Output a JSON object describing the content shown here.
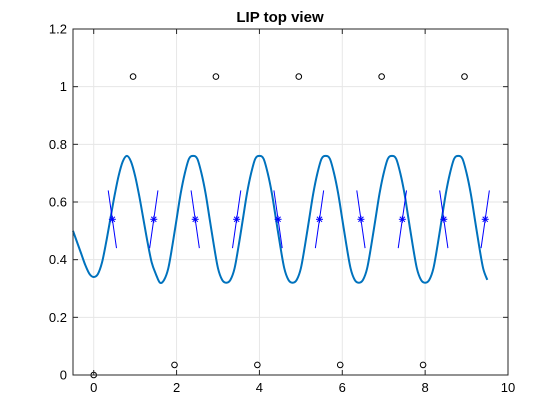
{
  "chart_data": {
    "type": "line",
    "title": "LIP top view",
    "xlabel": "",
    "ylabel": "",
    "xlim": [
      -0.5,
      10
    ],
    "ylim": [
      0,
      1.2
    ],
    "grid": true,
    "xticks": [
      0,
      2,
      4,
      6,
      8,
      10
    ],
    "yticks": [
      0,
      0.2,
      0.4,
      0.6,
      0.8,
      1,
      1.2
    ],
    "xtick_labels": [
      "0",
      "2",
      "4",
      "6",
      "8",
      "10"
    ],
    "ytick_labels": [
      "0",
      "0.2",
      "0.4",
      "0.6",
      "0.8",
      "1",
      "1.2"
    ],
    "colors": {
      "trajectory": "#0072BD",
      "markers": "#0000FF",
      "footsteps": "#000000",
      "grid": "#e6e6e6"
    },
    "series": [
      {
        "kind": "line",
        "x": [
          -0.5,
          -0.4,
          -0.3,
          -0.2,
          -0.1,
          0.0,
          0.1,
          0.2,
          0.3,
          0.4,
          0.5,
          0.6,
          0.7,
          0.8,
          0.9,
          1.0,
          1.1,
          1.2,
          1.3,
          1.4,
          1.5,
          1.6,
          1.7,
          1.8,
          1.9,
          2.0,
          2.1,
          2.2,
          2.3,
          2.4,
          2.5,
          2.6,
          2.7,
          2.8,
          2.9,
          3.0,
          3.1,
          3.2,
          3.3,
          3.4,
          3.5,
          3.6,
          3.7,
          3.8,
          3.9,
          4.0,
          4.1,
          4.2,
          4.3,
          4.4,
          4.5,
          4.6,
          4.7,
          4.8,
          4.9,
          5.0,
          5.1,
          5.2,
          5.3,
          5.4,
          5.5,
          5.6,
          5.7,
          5.8,
          5.9,
          6.0,
          6.1,
          6.2,
          6.3,
          6.4,
          6.5,
          6.6,
          6.7,
          6.8,
          6.9,
          7.0,
          7.1,
          7.2,
          7.3,
          7.4,
          7.5,
          7.6,
          7.7,
          7.8,
          7.9,
          8.0,
          8.1,
          8.2,
          8.3,
          8.4,
          8.5,
          8.6,
          8.7,
          8.8,
          8.9,
          9.0,
          9.1,
          9.2,
          9.3,
          9.4,
          9.5
        ],
        "y": [
          0.5,
          0.46,
          0.42,
          0.38,
          0.35,
          0.34,
          0.35,
          0.39,
          0.46,
          0.54,
          0.62,
          0.69,
          0.74,
          0.76,
          0.74,
          0.69,
          0.62,
          0.54,
          0.46,
          0.39,
          0.35,
          0.32,
          0.33,
          0.37,
          0.45,
          0.54,
          0.63,
          0.7,
          0.75,
          0.76,
          0.75,
          0.7,
          0.63,
          0.54,
          0.45,
          0.37,
          0.33,
          0.32,
          0.33,
          0.37,
          0.45,
          0.54,
          0.63,
          0.7,
          0.75,
          0.76,
          0.75,
          0.7,
          0.63,
          0.54,
          0.45,
          0.37,
          0.33,
          0.32,
          0.33,
          0.37,
          0.45,
          0.54,
          0.63,
          0.7,
          0.75,
          0.76,
          0.75,
          0.7,
          0.63,
          0.54,
          0.45,
          0.37,
          0.33,
          0.32,
          0.33,
          0.37,
          0.45,
          0.54,
          0.63,
          0.7,
          0.75,
          0.76,
          0.75,
          0.7,
          0.63,
          0.54,
          0.45,
          0.37,
          0.33,
          0.32,
          0.33,
          0.37,
          0.45,
          0.54,
          0.63,
          0.7,
          0.75,
          0.76,
          0.75,
          0.7,
          0.63,
          0.54,
          0.45,
          0.37,
          0.33
        ],
        "color": "#0072BD"
      },
      {
        "kind": "star_markers",
        "x": [
          0.45,
          1.45,
          2.45,
          3.45,
          4.45,
          5.45,
          6.45,
          7.45,
          8.45,
          9.45
        ],
        "y": [
          0.54,
          0.54,
          0.54,
          0.54,
          0.54,
          0.54,
          0.54,
          0.54,
          0.54,
          0.54
        ],
        "color": "#0000FF"
      },
      {
        "kind": "direction_segments",
        "segments": [
          [
            [
              0.35,
              0.64
            ],
            [
              0.55,
              0.44
            ]
          ],
          [
            [
              1.35,
              0.44
            ],
            [
              1.55,
              0.64
            ]
          ],
          [
            [
              2.35,
              0.64
            ],
            [
              2.55,
              0.44
            ]
          ],
          [
            [
              3.35,
              0.44
            ],
            [
              3.55,
              0.64
            ]
          ],
          [
            [
              4.35,
              0.64
            ],
            [
              4.55,
              0.44
            ]
          ],
          [
            [
              5.35,
              0.44
            ],
            [
              5.55,
              0.64
            ]
          ],
          [
            [
              6.35,
              0.64
            ],
            [
              6.55,
              0.44
            ]
          ],
          [
            [
              7.35,
              0.44
            ],
            [
              7.55,
              0.64
            ]
          ],
          [
            [
              8.35,
              0.64
            ],
            [
              8.55,
              0.44
            ]
          ],
          [
            [
              9.35,
              0.44
            ],
            [
              9.55,
              0.64
            ]
          ]
        ],
        "color": "#0000FF"
      },
      {
        "kind": "circle_markers",
        "x": [
          0.0,
          0.95,
          1.95,
          2.95,
          3.95,
          4.95,
          5.95,
          6.95,
          7.95,
          8.95
        ],
        "y": [
          0.0,
          1.035,
          0.035,
          1.035,
          0.035,
          1.035,
          0.035,
          1.035,
          0.035,
          1.035
        ],
        "color": "#000000"
      }
    ]
  }
}
